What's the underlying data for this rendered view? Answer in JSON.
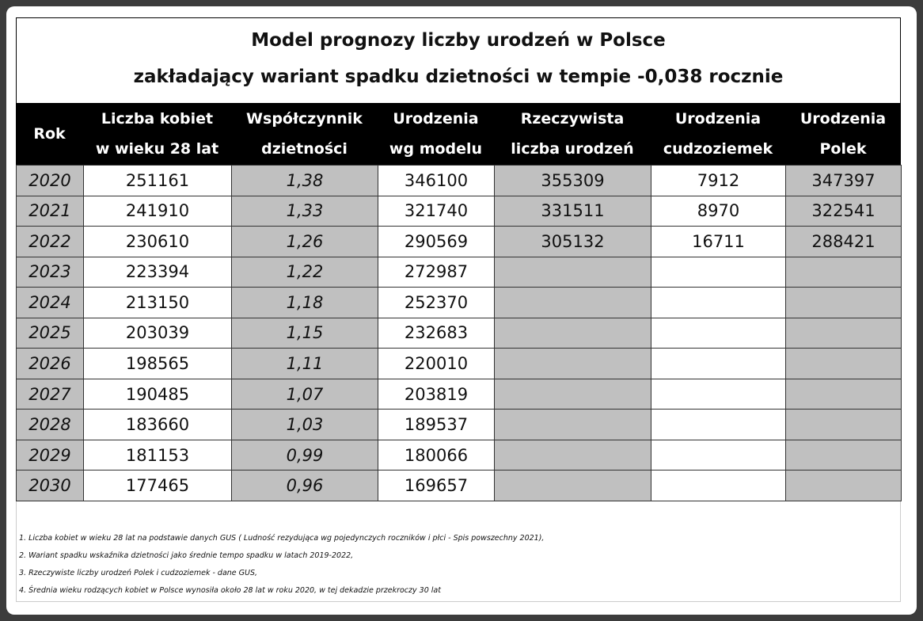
{
  "title": [
    "Model prognozy liczby urodzeń w Polsce",
    "zakładający wariant spadku dzietności w tempie -0,038 rocznie"
  ],
  "table": {
    "headers": [
      [
        "Rok"
      ],
      [
        "Liczba kobiet",
        "w wieku 28 lat"
      ],
      [
        "Współczynnik",
        "dzietności"
      ],
      [
        "Urodzenia",
        "wg modelu"
      ],
      [
        "Rzeczywista",
        "liczba urodzeń"
      ],
      [
        "Urodzenia",
        "cudzoziemek"
      ],
      [
        "Urodzenia",
        "Polek"
      ]
    ],
    "rows": [
      [
        "2020",
        "251161",
        "1,38",
        "346100",
        "355309",
        "7912",
        "347397"
      ],
      [
        "2021",
        "241910",
        "1,33",
        "321740",
        "331511",
        "8970",
        "322541"
      ],
      [
        "2022",
        "230610",
        "1,26",
        "290569",
        "305132",
        "16711",
        "288421"
      ],
      [
        "2023",
        "223394",
        "1,22",
        "272987"
      ],
      [
        "2024",
        "213150",
        "1,18",
        "252370"
      ],
      [
        "2025",
        "203039",
        "1,15",
        "232683"
      ],
      [
        "2026",
        "198565",
        "1,11",
        "220010"
      ],
      [
        "2027",
        "190485",
        "1,07",
        "203819"
      ],
      [
        "2028",
        "183660",
        "1,03",
        "189537"
      ],
      [
        "2029",
        "181153",
        "0,99",
        "180066"
      ],
      [
        "2030",
        "177465",
        "0,96",
        "169657"
      ]
    ]
  },
  "notes": [
    "1. Liczba kobiet w wieku 28 lat na podstawie danych GUS (  Ludność rezydująca wg pojedynczych roczników i płci - Spis powszechny 2021),",
    "2. Wariant spadku wskaźnika dzietności jako średnie tempo spadku w latach 2019-2022,",
    "3. Rzeczywiste liczby urodzeń Polek i cudzoziemek - dane GUS,",
    "4. Średnia wieku rodzących kobiet w Polsce wynosiła około 28 lat w roku 2020, w tej dekadzie przekroczy 30 lat"
  ]
}
